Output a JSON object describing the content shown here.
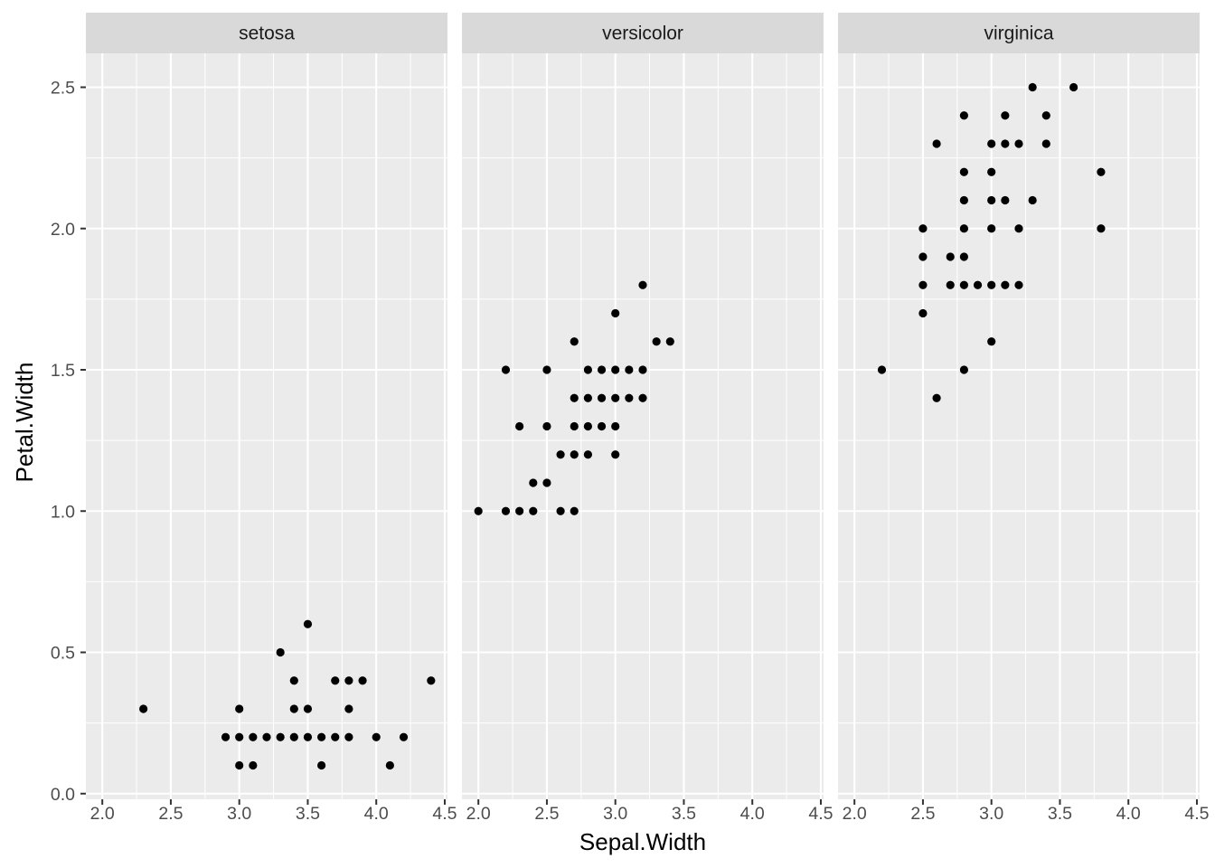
{
  "chart_data": {
    "type": "scatter",
    "facet_by": "Species",
    "xlabel": "Sepal.Width",
    "ylabel": "Petal.Width",
    "xlim": [
      1.88,
      4.52
    ],
    "ylim": [
      -0.02,
      2.62
    ],
    "x_ticks": [
      "2.0",
      "2.5",
      "3.0",
      "3.5",
      "4.0",
      "4.5"
    ],
    "y_ticks": [
      "0.0",
      "0.5",
      "1.0",
      "1.5",
      "2.0",
      "2.5"
    ],
    "point_color": "#000000",
    "panel_background": "#ebebeb",
    "strip_background": "#d9d9d9",
    "panels": [
      {
        "title": "setosa",
        "points": [
          [
            2.3,
            0.3
          ],
          [
            2.9,
            0.2
          ],
          [
            3.0,
            0.2
          ],
          [
            3.0,
            0.1
          ],
          [
            3.0,
            0.3
          ],
          [
            3.1,
            0.2
          ],
          [
            3.1,
            0.1
          ],
          [
            3.2,
            0.2
          ],
          [
            3.3,
            0.2
          ],
          [
            3.3,
            0.5
          ],
          [
            3.4,
            0.2
          ],
          [
            3.4,
            0.3
          ],
          [
            3.4,
            0.4
          ],
          [
            3.5,
            0.2
          ],
          [
            3.5,
            0.3
          ],
          [
            3.5,
            0.6
          ],
          [
            3.6,
            0.2
          ],
          [
            3.6,
            0.1
          ],
          [
            3.7,
            0.2
          ],
          [
            3.7,
            0.4
          ],
          [
            3.8,
            0.2
          ],
          [
            3.8,
            0.3
          ],
          [
            3.8,
            0.4
          ],
          [
            3.9,
            0.4
          ],
          [
            4.0,
            0.2
          ],
          [
            4.1,
            0.1
          ],
          [
            4.2,
            0.2
          ],
          [
            4.4,
            0.4
          ]
        ]
      },
      {
        "title": "versicolor",
        "points": [
          [
            2.0,
            1.0
          ],
          [
            2.2,
            1.0
          ],
          [
            2.2,
            1.5
          ],
          [
            2.3,
            1.0
          ],
          [
            2.3,
            1.3
          ],
          [
            2.4,
            1.0
          ],
          [
            2.4,
            1.1
          ],
          [
            2.5,
            1.1
          ],
          [
            2.5,
            1.3
          ],
          [
            2.5,
            1.5
          ],
          [
            2.6,
            1.0
          ],
          [
            2.6,
            1.2
          ],
          [
            2.7,
            1.0
          ],
          [
            2.7,
            1.2
          ],
          [
            2.7,
            1.3
          ],
          [
            2.7,
            1.4
          ],
          [
            2.7,
            1.6
          ],
          [
            2.8,
            1.2
          ],
          [
            2.8,
            1.3
          ],
          [
            2.8,
            1.4
          ],
          [
            2.8,
            1.5
          ],
          [
            2.9,
            1.3
          ],
          [
            2.9,
            1.4
          ],
          [
            2.9,
            1.5
          ],
          [
            3.0,
            1.2
          ],
          [
            3.0,
            1.3
          ],
          [
            3.0,
            1.4
          ],
          [
            3.0,
            1.5
          ],
          [
            3.0,
            1.7
          ],
          [
            3.1,
            1.4
          ],
          [
            3.1,
            1.5
          ],
          [
            3.2,
            1.4
          ],
          [
            3.2,
            1.5
          ],
          [
            3.2,
            1.8
          ],
          [
            3.3,
            1.6
          ],
          [
            3.4,
            1.6
          ]
        ]
      },
      {
        "title": "virginica",
        "points": [
          [
            2.2,
            1.5
          ],
          [
            2.5,
            1.7
          ],
          [
            2.5,
            1.8
          ],
          [
            2.5,
            1.9
          ],
          [
            2.5,
            2.0
          ],
          [
            2.6,
            1.4
          ],
          [
            2.6,
            2.3
          ],
          [
            2.7,
            1.8
          ],
          [
            2.7,
            1.9
          ],
          [
            2.8,
            1.5
          ],
          [
            2.8,
            1.8
          ],
          [
            2.8,
            1.9
          ],
          [
            2.8,
            2.0
          ],
          [
            2.8,
            2.1
          ],
          [
            2.8,
            2.2
          ],
          [
            2.8,
            2.4
          ],
          [
            2.9,
            1.8
          ],
          [
            3.0,
            1.6
          ],
          [
            3.0,
            1.8
          ],
          [
            3.0,
            2.0
          ],
          [
            3.0,
            2.1
          ],
          [
            3.0,
            2.2
          ],
          [
            3.0,
            2.3
          ],
          [
            3.1,
            1.8
          ],
          [
            3.1,
            2.1
          ],
          [
            3.1,
            2.3
          ],
          [
            3.1,
            2.4
          ],
          [
            3.2,
            1.8
          ],
          [
            3.2,
            2.0
          ],
          [
            3.2,
            2.3
          ],
          [
            3.3,
            2.1
          ],
          [
            3.3,
            2.5
          ],
          [
            3.4,
            2.3
          ],
          [
            3.4,
            2.4
          ],
          [
            3.6,
            2.5
          ],
          [
            3.8,
            2.0
          ],
          [
            3.8,
            2.2
          ]
        ]
      }
    ]
  }
}
